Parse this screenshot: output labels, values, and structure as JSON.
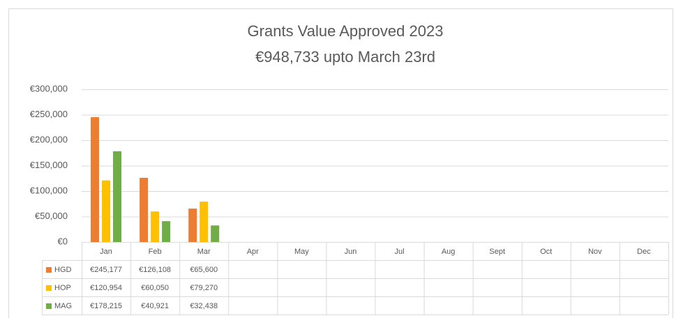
{
  "chart_data": {
    "type": "bar",
    "title": [
      "Grants Value Approved 2023",
      "€948,733 upto March 23rd"
    ],
    "categories": [
      "Jan",
      "Feb",
      "Mar",
      "Apr",
      "May",
      "Jun",
      "Jul",
      "Aug",
      "Sept",
      "Oct",
      "Nov",
      "Dec"
    ],
    "series": [
      {
        "name": "HGD",
        "color": "#ed7d31",
        "values": [
          245177,
          126108,
          65600,
          null,
          null,
          null,
          null,
          null,
          null,
          null,
          null,
          null
        ],
        "value_labels": [
          "€245,177",
          "€126,108",
          "€65,600",
          null,
          null,
          null,
          null,
          null,
          null,
          null,
          null,
          null
        ]
      },
      {
        "name": "HOP",
        "color": "#ffc000",
        "values": [
          120954,
          60050,
          79270,
          null,
          null,
          null,
          null,
          null,
          null,
          null,
          null,
          null
        ],
        "value_labels": [
          "€120,954",
          "€60,050",
          "€79,270",
          null,
          null,
          null,
          null,
          null,
          null,
          null,
          null,
          null
        ]
      },
      {
        "name": "MAG",
        "color": "#70ad47",
        "values": [
          178215,
          40921,
          32438,
          null,
          null,
          null,
          null,
          null,
          null,
          null,
          null,
          null
        ],
        "value_labels": [
          "€178,215",
          "€40,921",
          "€32,438",
          null,
          null,
          null,
          null,
          null,
          null,
          null,
          null,
          null
        ]
      }
    ],
    "ylim": [
      0,
      300000
    ],
    "yticks": [
      {
        "value": 0,
        "label": "€0"
      },
      {
        "value": 50000,
        "label": "€50,000"
      },
      {
        "value": 100000,
        "label": "€100,000"
      },
      {
        "value": 150000,
        "label": "€150,000"
      },
      {
        "value": 200000,
        "label": "€200,000"
      },
      {
        "value": 250000,
        "label": "€250,000"
      },
      {
        "value": 300000,
        "label": "€300,000"
      }
    ],
    "grid": true
  }
}
